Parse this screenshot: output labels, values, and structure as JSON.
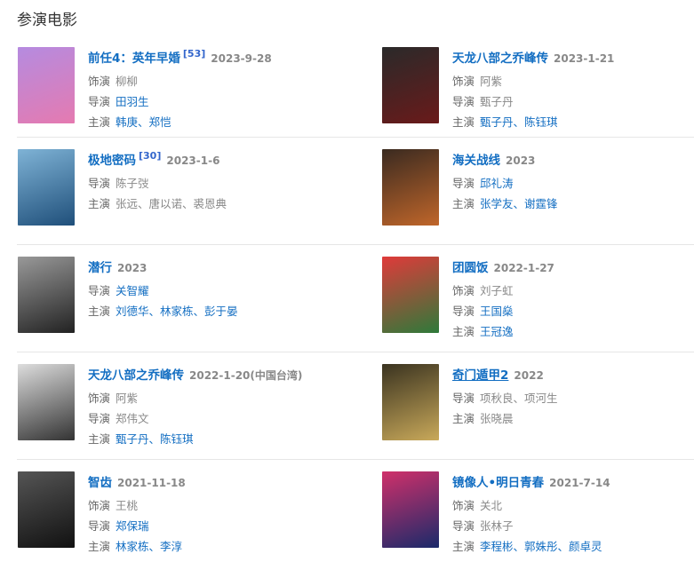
{
  "section_title": "参演电影",
  "movies": [
    {
      "title": "前任4：英年早婚",
      "ref": "[53]",
      "date": "2023-9-28",
      "poster": [
        "#b58be0",
        "#e57ab0"
      ],
      "rows": [
        {
          "label": "饰演",
          "value": "柳柳",
          "link": false
        },
        {
          "label": "导演",
          "value": "田羽生",
          "link": true
        },
        {
          "label": "主演",
          "value": "韩庚、郑恺",
          "link": true
        }
      ]
    },
    {
      "title": "天龙八部之乔峰传",
      "date": "2023-1-21",
      "poster": [
        "#2a2a2a",
        "#6a1a1a"
      ],
      "rows": [
        {
          "label": "饰演",
          "value": "阿紫",
          "link": false
        },
        {
          "label": "导演",
          "value": "甄子丹",
          "link": false
        },
        {
          "label": "主演",
          "value": "甄子丹、陈钰琪",
          "link": true
        }
      ]
    },
    {
      "title": "极地密码",
      "ref": "[30]",
      "date": "2023-1-6",
      "poster": [
        "#7fb3d6",
        "#1f4f7a"
      ],
      "rows": [
        {
          "label": "导演",
          "value": "陈子弢",
          "link": false
        },
        {
          "label": "主演",
          "value": "张远、唐以诺、裘恩典",
          "link": false
        }
      ]
    },
    {
      "title": "海关战线",
      "date": "2023",
      "poster": [
        "#3a2a20",
        "#c0662a"
      ],
      "rows": [
        {
          "label": "导演",
          "value": "邱礼涛",
          "link": true
        },
        {
          "label": "主演",
          "value": "张学友、谢霆锋",
          "link": true
        }
      ]
    },
    {
      "title": "潜行",
      "date": "2023",
      "poster": [
        "#999",
        "#222"
      ],
      "rows": [
        {
          "label": "导演",
          "value": "关智耀",
          "link": true
        },
        {
          "label": "主演",
          "value": "刘德华、林家栋、彭于晏",
          "link": true
        }
      ]
    },
    {
      "title": "团圆饭",
      "date": "2022-1-27",
      "poster": [
        "#e03a3a",
        "#2e7a3a"
      ],
      "rows": [
        {
          "label": "饰演",
          "value": "刘子虹",
          "link": false
        },
        {
          "label": "导演",
          "value": "王国燊",
          "link": true
        },
        {
          "label": "主演",
          "value": "王冠逸",
          "link": true
        }
      ]
    },
    {
      "title": "天龙八部之乔峰传",
      "date": "2022-1-20(中国台湾)",
      "poster": [
        "#ddd",
        "#333"
      ],
      "rows": [
        {
          "label": "饰演",
          "value": "阿紫",
          "link": false
        },
        {
          "label": "导演",
          "value": "郑伟文",
          "link": false
        },
        {
          "label": "主演",
          "value": "甄子丹、陈钰琪",
          "link": true
        }
      ]
    },
    {
      "title": "奇门遁甲2",
      "date": "2022",
      "hover": true,
      "poster": [
        "#3a3320",
        "#c9a95a"
      ],
      "rows": [
        {
          "label": "导演",
          "value": "项秋良、项河生",
          "link": false
        },
        {
          "label": "主演",
          "value": "张晓晨",
          "link": false
        }
      ]
    },
    {
      "title": "智齿",
      "date": "2021-11-18",
      "poster": [
        "#555",
        "#111"
      ],
      "rows": [
        {
          "label": "饰演",
          "value": "王桃",
          "link": false
        },
        {
          "label": "导演",
          "value": "郑保瑞",
          "link": true
        },
        {
          "label": "主演",
          "value": "林家栋、李淳",
          "link": true
        }
      ]
    },
    {
      "title": "镜像人•明日青春",
      "date": "2021-7-14",
      "poster": [
        "#d0306a",
        "#1a2a6a"
      ],
      "rows": [
        {
          "label": "饰演",
          "value": "关北",
          "link": false
        },
        {
          "label": "导演",
          "value": "张林子",
          "link": false
        },
        {
          "label": "主演",
          "value": "李程彬、郭姝彤、颜卓灵",
          "link": true
        }
      ]
    }
  ]
}
